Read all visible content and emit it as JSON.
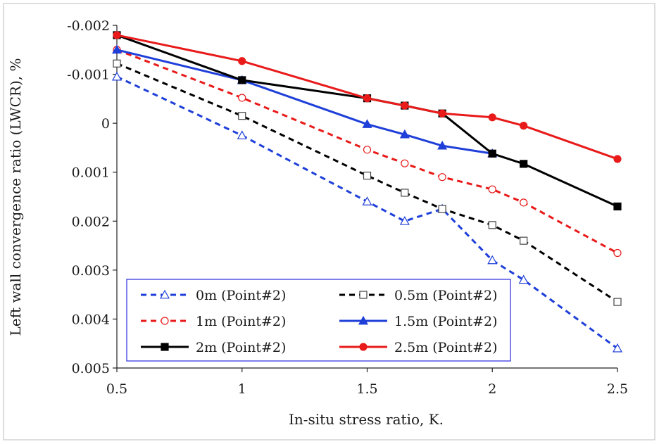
{
  "chart_data": {
    "type": "line",
    "title": "",
    "xlabel": "In-situ stress ratio, K.",
    "ylabel": "Left wall convergence ratio (LWCR), %",
    "xlim": [
      0.5,
      2.5
    ],
    "ylim": [
      -0.002,
      0.005
    ],
    "y_inverted": true,
    "grid": false,
    "x_ticks": [
      0.5,
      1,
      1.5,
      2,
      2.5
    ],
    "x_tick_labels": [
      "0.5",
      "1",
      "1.5",
      "2",
      "2.5"
    ],
    "y_ticks": [
      -0.002,
      -0.001,
      0,
      0.001,
      0.002,
      0.003,
      0.004,
      0.005
    ],
    "y_tick_labels": [
      "-0.002",
      "-0.001",
      "0",
      "0.001",
      "0.002",
      "0.003",
      "0.004",
      "0.005"
    ],
    "legend_position": "bottom-left",
    "series": [
      {
        "name": "0m (Point#2)",
        "color": "#1f3fd9",
        "dash": "dashed",
        "marker": "triangle-open",
        "x": [
          0.5,
          1,
          1.5,
          1.65,
          1.8,
          2,
          2.125,
          2.5
        ],
        "y": [
          -0.00095,
          0.00025,
          0.0016,
          0.002,
          0.00175,
          0.0028,
          0.0032,
          0.0046
        ]
      },
      {
        "name": "0.5m (Point#2)",
        "color": "#000000",
        "dash": "dashed",
        "marker": "square-open",
        "x": [
          0.5,
          1,
          1.5,
          1.65,
          1.8,
          2,
          2.125,
          2.5
        ],
        "y": [
          -0.00122,
          -0.00015,
          0.00107,
          0.00142,
          0.00175,
          0.00208,
          0.0024,
          0.00365
        ]
      },
      {
        "name": "1m (Point#2)",
        "color": "#e81a1a",
        "dash": "dashed",
        "marker": "circle-open",
        "x": [
          0.5,
          1,
          1.5,
          1.65,
          1.8,
          2,
          2.125,
          2.5
        ],
        "y": [
          -0.0015,
          -0.00052,
          0.00054,
          0.00082,
          0.0011,
          0.00135,
          0.00162,
          0.00265
        ]
      },
      {
        "name": "1.5m (Point#2)",
        "color": "#1f3fd9",
        "dash": "solid",
        "marker": "triangle-filled",
        "x": [
          0.5,
          1,
          1.5,
          1.65,
          1.8,
          2
        ],
        "y": [
          -0.0015,
          -0.00088,
          2e-05,
          0.00023,
          0.00046,
          0.00062
        ]
      },
      {
        "name": "2m (Point#2)",
        "color": "#000000",
        "dash": "solid",
        "marker": "square-filled",
        "x": [
          0.5,
          1,
          1.5,
          1.65,
          1.8,
          2,
          2.125,
          2.5
        ],
        "y": [
          -0.0018,
          -0.00088,
          -0.00051,
          -0.00036,
          -0.0002,
          0.00062,
          0.00083,
          0.0017
        ]
      },
      {
        "name": "2.5m (Point#2)",
        "color": "#e81a1a",
        "dash": "solid",
        "marker": "circle-filled",
        "x": [
          0.5,
          1,
          1.5,
          1.65,
          1.8,
          2,
          2.125,
          2.5
        ],
        "y": [
          -0.0018,
          -0.00127,
          -0.00051,
          -0.00036,
          -0.0002,
          -0.00012,
          5e-05,
          0.00073
        ]
      }
    ]
  }
}
